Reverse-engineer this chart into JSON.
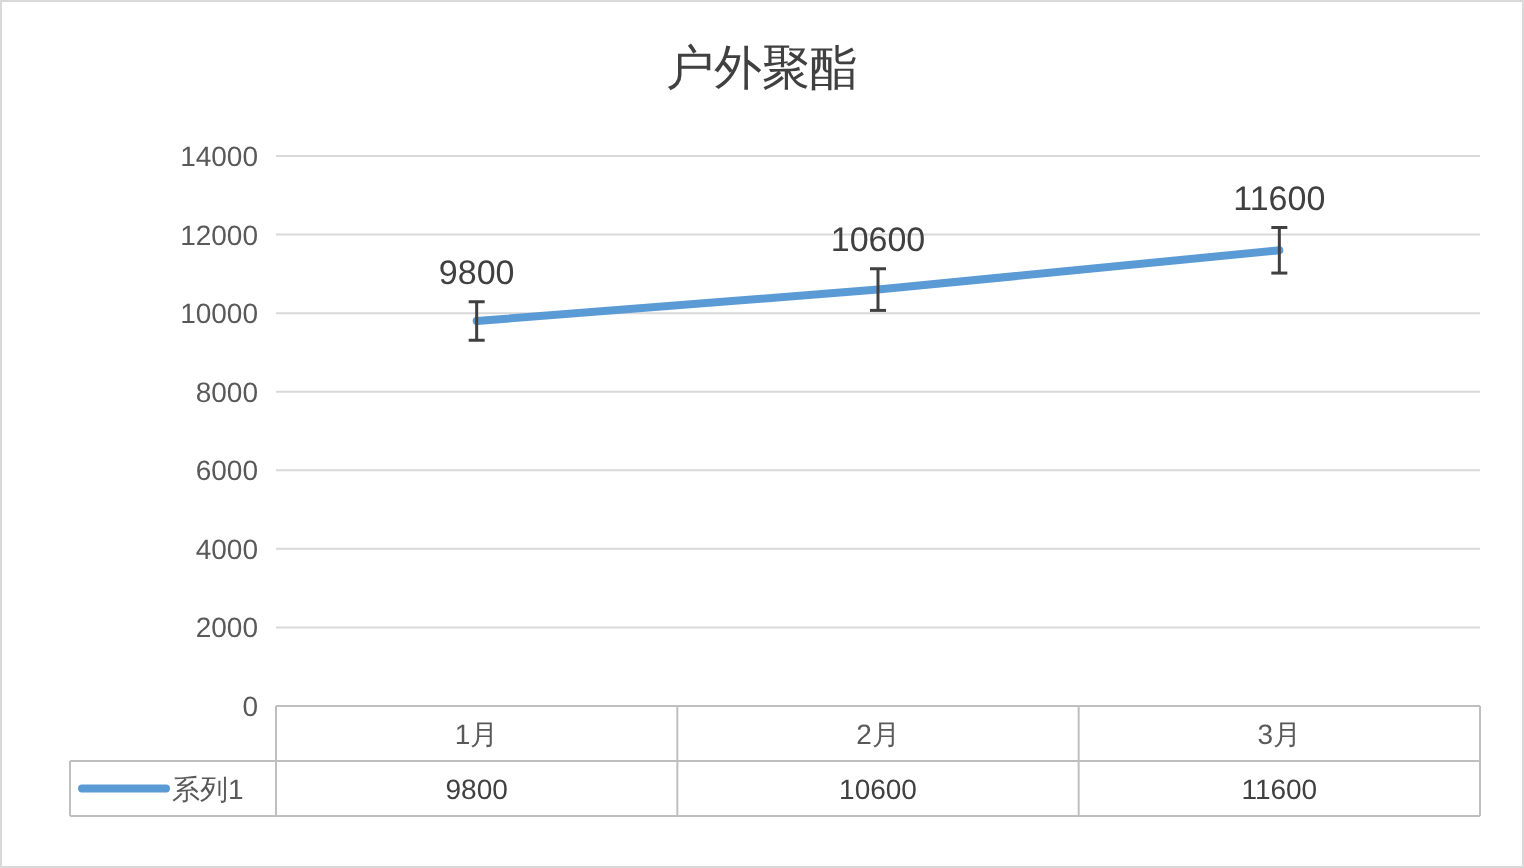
{
  "chart_data": {
    "type": "line",
    "title": "户外聚酯",
    "categories": [
      "1月",
      "2月",
      "3月"
    ],
    "series": [
      {
        "name": "系列1",
        "color": "#5b9bd5",
        "values": [
          9800,
          10600,
          11600
        ],
        "errors": [
          490,
          530,
          580
        ]
      }
    ],
    "annotations": [
      {
        "text": "9800",
        "x": "1月",
        "y": 9800
      },
      {
        "text": "10600",
        "x": "2月",
        "y": 10600
      },
      {
        "text": "11600",
        "x": "3月",
        "y": 11600
      }
    ],
    "ylim": [
      0,
      14000
    ],
    "yticks": [
      0,
      2000,
      4000,
      6000,
      8000,
      10000,
      12000,
      14000
    ],
    "grid": "y",
    "data_labels": true,
    "legend": "bottom",
    "marker": "none",
    "line_style": "solid"
  }
}
